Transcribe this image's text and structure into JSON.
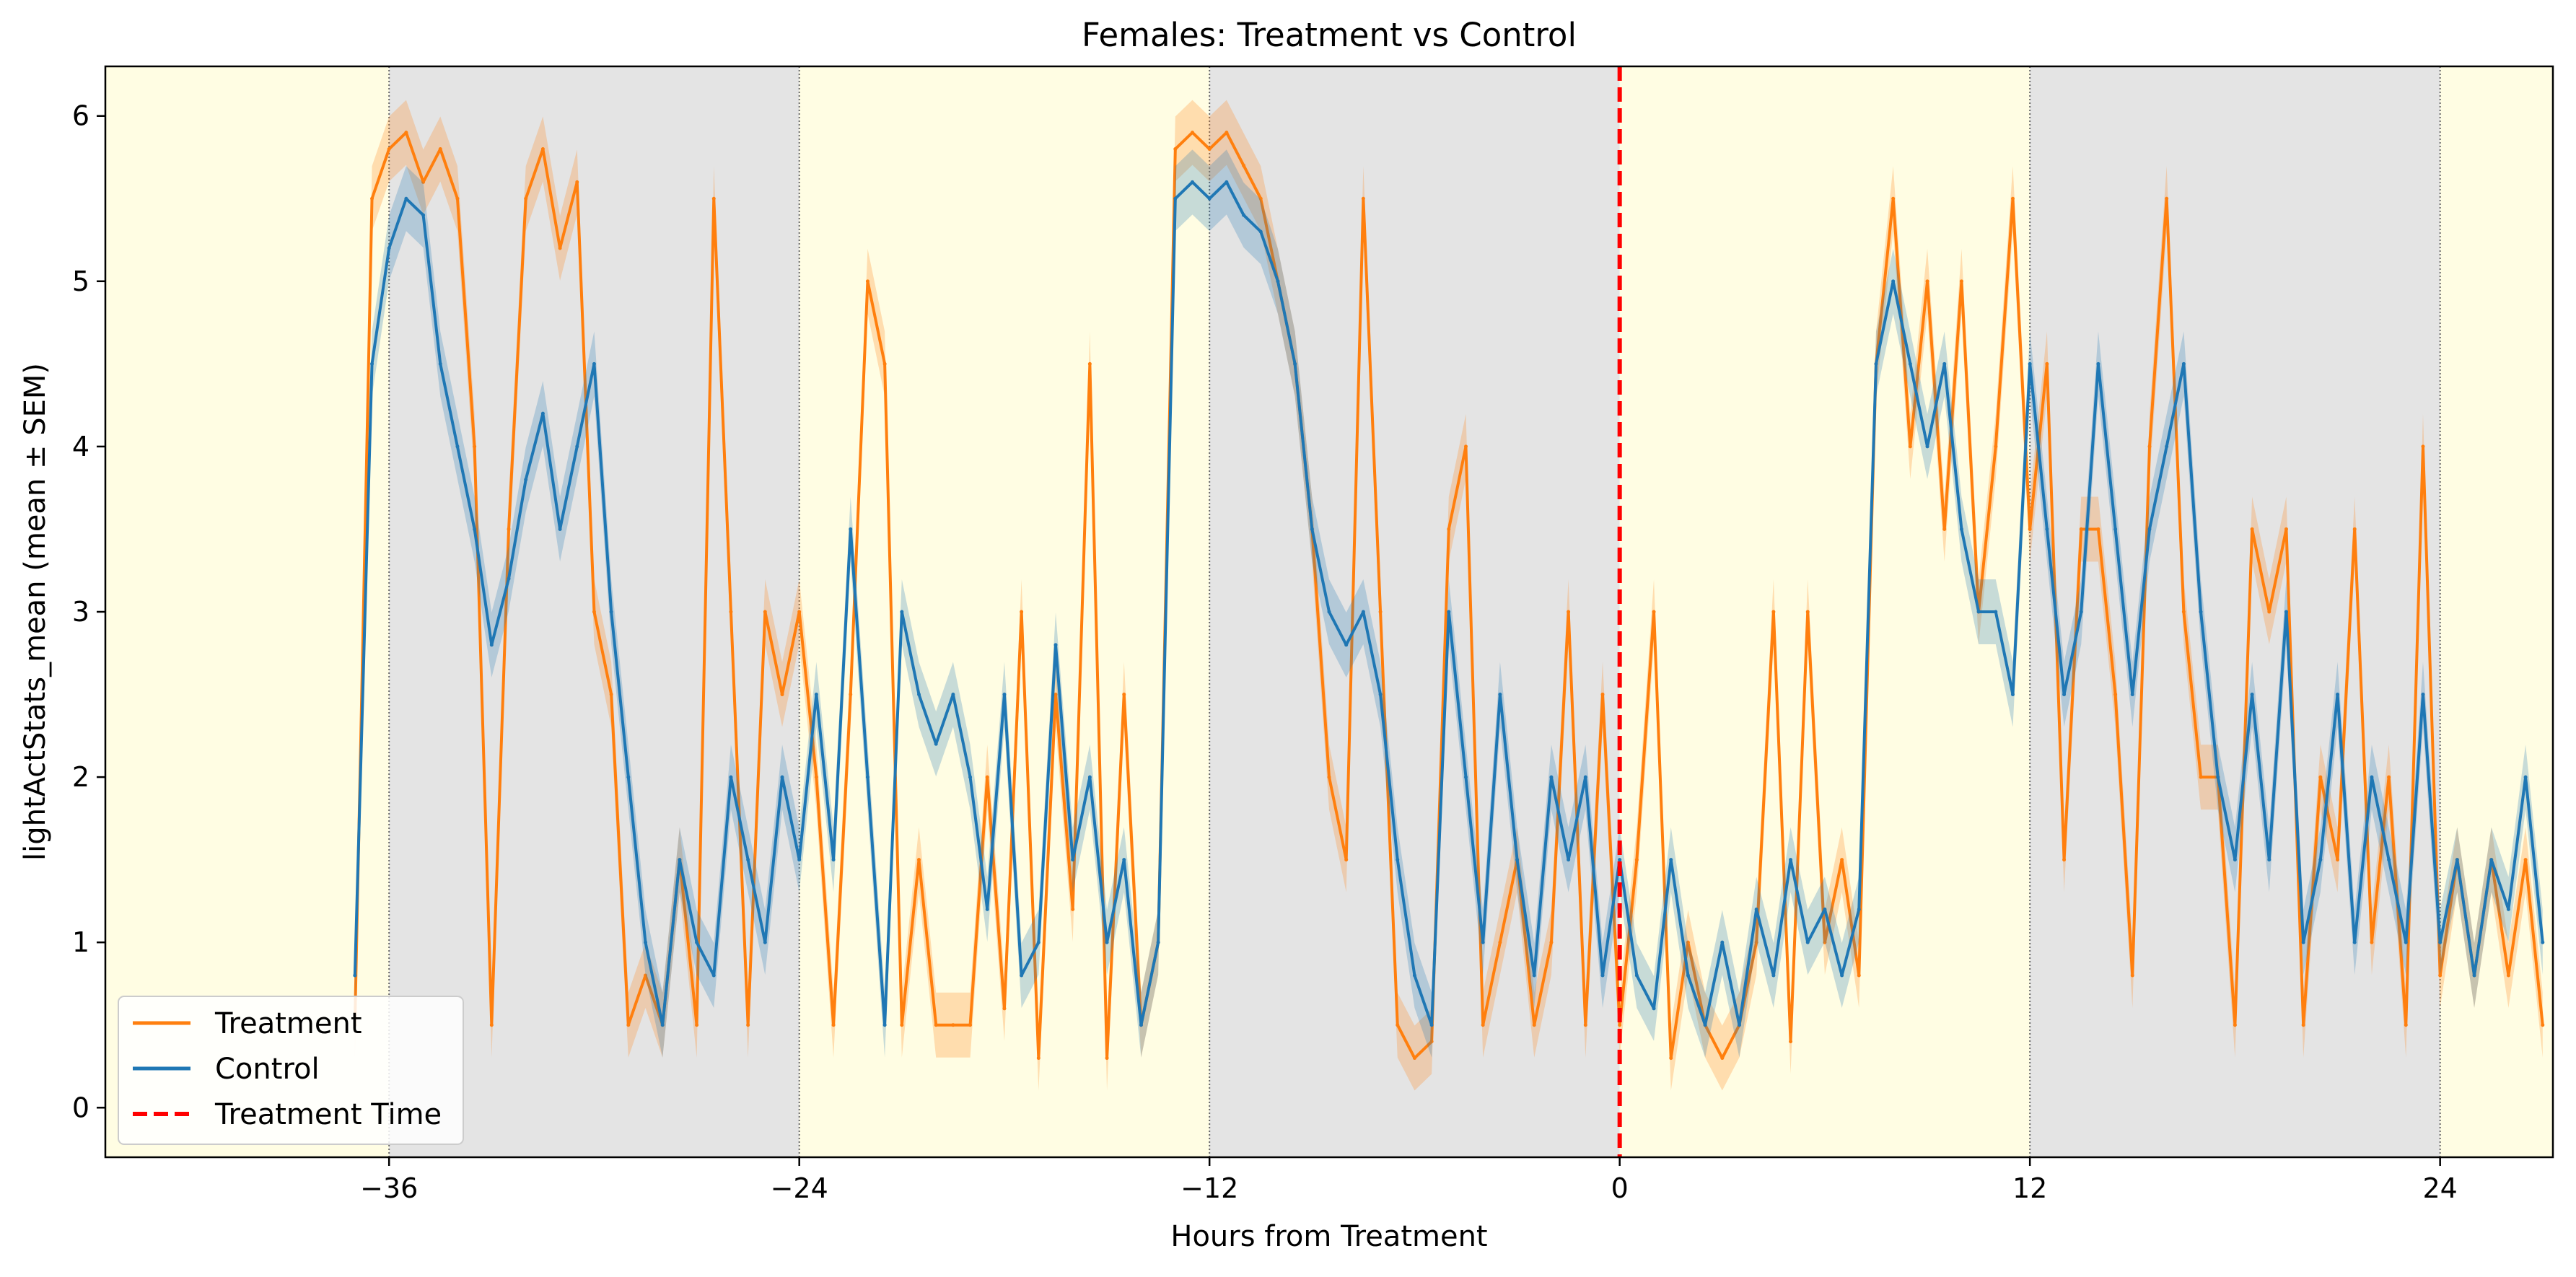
{
  "chart_data": {
    "type": "line",
    "title": "Females: Treatment vs Control",
    "xlabel": "Hours from Treatment",
    "ylabel": "lightActStats_mean (mean ± SEM)",
    "xlim": [
      -44.3,
      27.3
    ],
    "ylim": [
      -0.3,
      6.3
    ],
    "xticks": [
      -36,
      -24,
      -12,
      0,
      12,
      24
    ],
    "xtick_labels": [
      "−36",
      "−24",
      "−12",
      "0",
      "12",
      "24"
    ],
    "yticks": [
      0,
      1,
      2,
      3,
      4,
      5,
      6
    ],
    "ytick_labels": [
      "0",
      "1",
      "2",
      "3",
      "4",
      "5",
      "6"
    ],
    "grid": false,
    "legend_position": "lower left",
    "light_phase_color": "#fffde3",
    "dark_phase_color": "#e4e4e4",
    "phase_bands": [
      {
        "phase": "light",
        "x_start": -44.3,
        "x_end": -36
      },
      {
        "phase": "dark",
        "x_start": -36,
        "x_end": -24
      },
      {
        "phase": "light",
        "x_start": -24,
        "x_end": -12
      },
      {
        "phase": "dark",
        "x_start": -12,
        "x_end": 0
      },
      {
        "phase": "light",
        "x_start": 0,
        "x_end": 12
      },
      {
        "phase": "dark",
        "x_start": 12,
        "x_end": 24
      },
      {
        "phase": "light",
        "x_start": 24,
        "x_end": 27.3
      }
    ],
    "boundary_lines_x": [
      -36,
      -24,
      -12,
      12,
      24
    ],
    "treatment_time_x": 0,
    "series": [
      {
        "name": "Treatment",
        "color": "#ff7f0e",
        "x_start": -37,
        "x_step": 0.5,
        "values": [
          0.5,
          5.5,
          5.8,
          5.9,
          5.6,
          5.8,
          5.5,
          4.0,
          0.5,
          3.5,
          5.5,
          5.8,
          5.2,
          5.6,
          3.0,
          2.5,
          0.5,
          0.8,
          0.5,
          1.5,
          0.5,
          5.5,
          3.0,
          0.5,
          3.0,
          2.5,
          3.0,
          2.0,
          0.5,
          2.5,
          5.0,
          4.5,
          0.5,
          1.5,
          0.5,
          0.5,
          0.5,
          2.0,
          0.6,
          3.0,
          0.3,
          2.5,
          1.2,
          4.5,
          0.3,
          2.5,
          0.5,
          1.0,
          5.8,
          5.9,
          5.8,
          5.9,
          5.7,
          5.5,
          5.0,
          4.5,
          3.5,
          2.0,
          1.5,
          5.5,
          3.0,
          0.5,
          0.3,
          0.4,
          3.5,
          4.0,
          0.5,
          1.0,
          1.5,
          0.5,
          1.0,
          3.0,
          0.5,
          2.5,
          0.5,
          1.5,
          3.0,
          0.3,
          1.0,
          0.5,
          0.3,
          0.5,
          1.0,
          3.0,
          0.4,
          3.0,
          1.0,
          1.5,
          0.8,
          4.5,
          5.5,
          4.0,
          5.0,
          3.5,
          5.0,
          3.0,
          4.0,
          5.5,
          3.5,
          4.5,
          1.5,
          3.5,
          3.5,
          2.5,
          0.8,
          4.0,
          5.5,
          3.0,
          2.0,
          2.0,
          0.5,
          3.5,
          3.0,
          3.5,
          0.5,
          2.0,
          1.5,
          3.5,
          1.0,
          2.0,
          0.5,
          4.0,
          0.8,
          1.5,
          0.8,
          1.5,
          0.8,
          1.5,
          0.5
        ]
      },
      {
        "name": "Control",
        "color": "#1f77b4",
        "x_start": -37,
        "x_step": 0.5,
        "values": [
          0.8,
          4.5,
          5.2,
          5.5,
          5.4,
          4.5,
          4.0,
          3.5,
          2.8,
          3.2,
          3.8,
          4.2,
          3.5,
          4.0,
          4.5,
          3.0,
          2.0,
          1.0,
          0.5,
          1.5,
          1.0,
          0.8,
          2.0,
          1.5,
          1.0,
          2.0,
          1.5,
          2.5,
          1.5,
          3.5,
          2.0,
          0.5,
          3.0,
          2.5,
          2.2,
          2.5,
          2.0,
          1.2,
          2.5,
          0.8,
          1.0,
          2.8,
          1.5,
          2.0,
          1.0,
          1.5,
          0.5,
          1.0,
          5.5,
          5.6,
          5.5,
          5.6,
          5.4,
          5.3,
          5.0,
          4.5,
          3.5,
          3.0,
          2.8,
          3.0,
          2.5,
          1.5,
          0.8,
          0.5,
          3.0,
          2.0,
          1.0,
          2.5,
          1.5,
          0.8,
          2.0,
          1.5,
          2.0,
          0.8,
          1.5,
          0.8,
          0.6,
          1.5,
          0.8,
          0.5,
          1.0,
          0.5,
          1.2,
          0.8,
          1.5,
          1.0,
          1.2,
          0.8,
          1.2,
          4.5,
          5.0,
          4.5,
          4.0,
          4.5,
          3.5,
          3.0,
          3.0,
          2.5,
          4.5,
          3.5,
          2.5,
          3.0,
          4.5,
          3.5,
          2.5,
          3.5,
          4.0,
          4.5,
          3.0,
          2.0,
          1.5,
          2.5,
          1.5,
          3.0,
          1.0,
          1.5,
          2.5,
          1.0,
          2.0,
          1.5,
          1.0,
          2.5,
          1.0,
          1.5,
          0.8,
          1.5,
          1.2,
          2.0,
          1.0
        ]
      }
    ],
    "treatment_time": {
      "name": "Treatment Time",
      "color": "#ff0000",
      "style": "dashed"
    }
  }
}
